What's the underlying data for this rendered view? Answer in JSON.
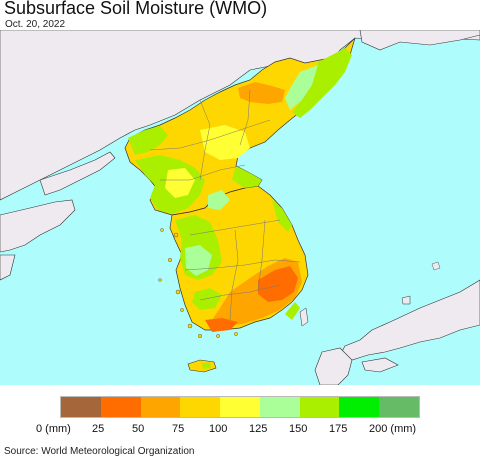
{
  "header": {
    "title": "Subsurface Soil Moisture (WMO)",
    "date": "Oct. 20, 2022"
  },
  "legend": {
    "tick_labels": [
      "0 (mm)",
      "25",
      "50",
      "75",
      "100",
      "125",
      "150",
      "175",
      "200 (mm)"
    ],
    "colors": [
      "#a5673a",
      "#ff6d00",
      "#ffa500",
      "#ffd700",
      "#ffff33",
      "#aaff99",
      "#aaee00",
      "#00ee00",
      "#66bb66"
    ]
  },
  "map": {
    "sea_color": "#aefcfc",
    "land_other_color": "#eeeaf0",
    "no_data_color": "#ffffff"
  },
  "footer": {
    "source": "Source: World Meteorological Organization"
  }
}
